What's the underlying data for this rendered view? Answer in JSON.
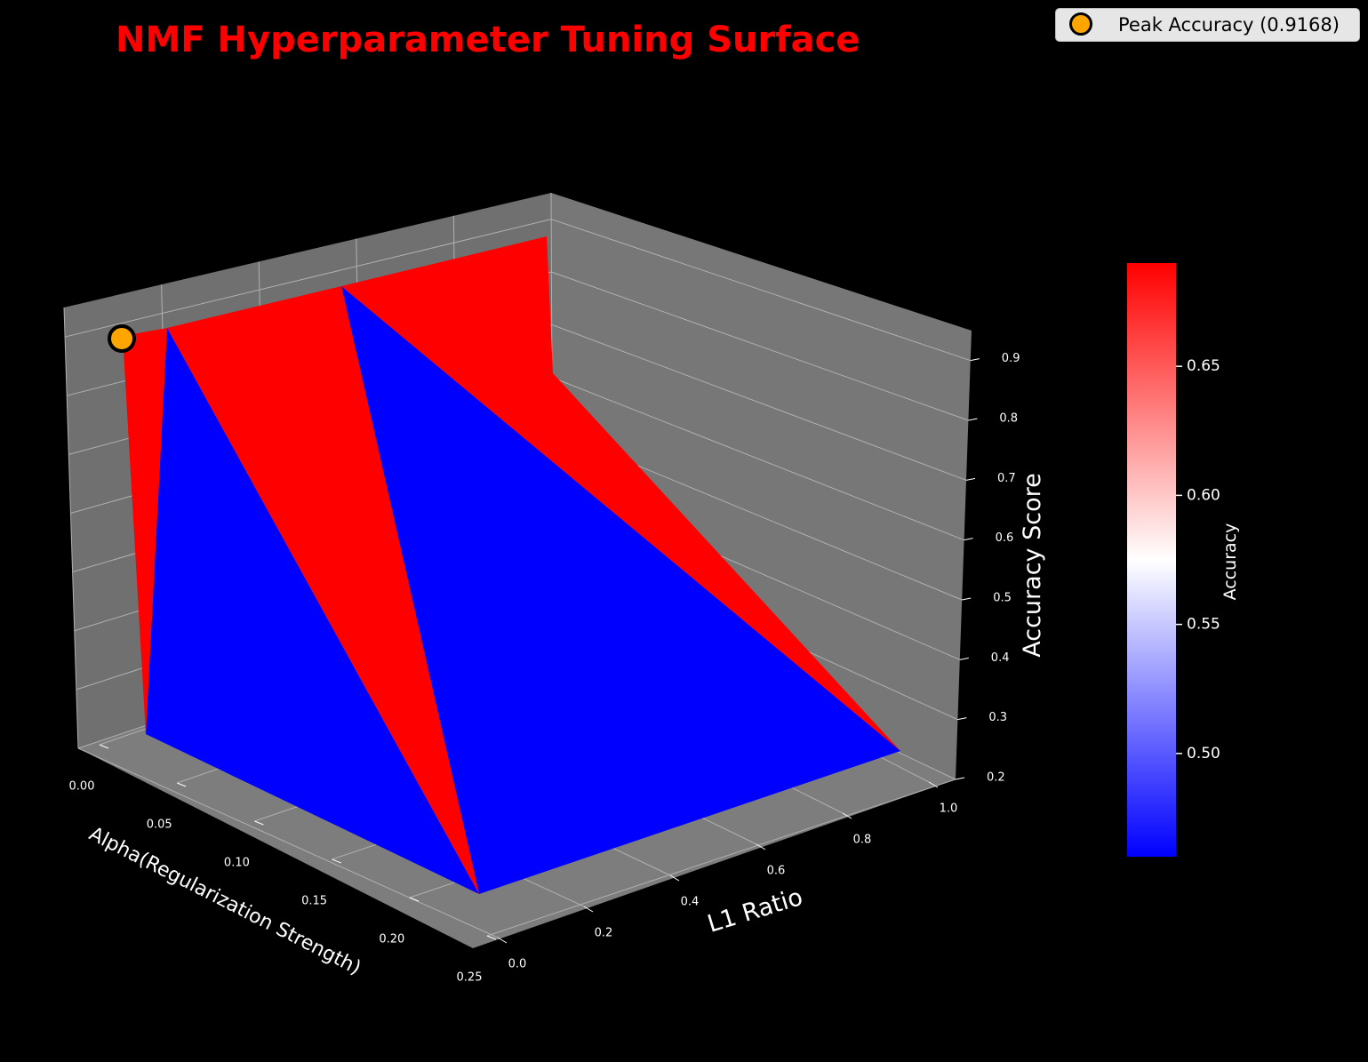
{
  "chart_data": {
    "type": "surface3d",
    "title": "NMF Hyperparameter Tuning Surface",
    "xlabel": "Alpha(Regularization Strength)",
    "ylabel": "L1 Ratio",
    "zlabel": "Accuracy Score",
    "xlim": [
      0,
      0.25
    ],
    "ylim": [
      0,
      1.0
    ],
    "zlim": [
      0.2,
      0.95
    ],
    "x_ticks": [
      "0.00",
      "0.05",
      "0.10",
      "0.15",
      "0.20",
      "0.25"
    ],
    "y_ticks": [
      "0.0",
      "0.2",
      "0.4",
      "0.6",
      "0.8",
      "1.0"
    ],
    "z_ticks": [
      "0.2",
      "0.3",
      "0.4",
      "0.5",
      "0.6",
      "0.7",
      "0.8",
      "0.9"
    ],
    "colormap": "bwr",
    "colorbar": {
      "label": "Accuracy",
      "range": [
        0.46,
        0.69
      ],
      "ticks": [
        "0.50",
        "0.55",
        "0.60",
        "0.65"
      ],
      "tick_values": [
        0.5,
        0.55,
        0.6,
        0.65
      ]
    },
    "peak": {
      "alpha": 0.0,
      "l1_ratio": 0.0,
      "accuracy": 0.9168,
      "color": "#ffa500"
    },
    "legend": {
      "label": "Peak Accuracy (0.9168)",
      "position": "top-right"
    },
    "colors": {
      "high": "#ff0000",
      "low": "#0000ff",
      "pane": "#777777",
      "grid": "#b0b0b0"
    }
  }
}
